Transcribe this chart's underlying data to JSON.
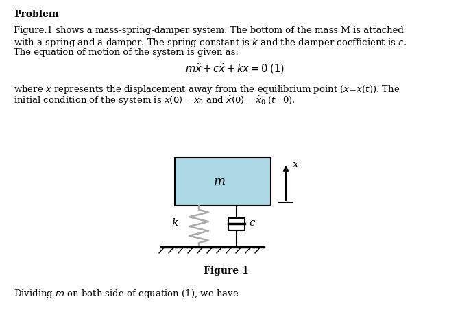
{
  "title": "Problem",
  "para1_lines": [
    "Figure.1 shows a mass-spring-damper system. The bottom of the mass M is attached",
    "with a spring and a damper. The spring constant is $k$ and the damper coefficient is $c$.",
    "The equation of motion of the system is given as:"
  ],
  "equation": "$m\\ddot{x} + c\\dot{x} + kx = 0\\;(1)$",
  "para2_line1": "where $x$ represents the displacement away from the equilibrium point ($x$=$x$($t$)). The",
  "para2_line2": "initial condition of the system is $x(0) = x_0$ and $\\dot{x}(0) = \\dot{x}_0$ ($t$=0).",
  "figure_label": "Figure 1",
  "bottom_text": "Dividing $m$ on both side of equation (1), we have",
  "mass_color": "#add8e6",
  "bg_color": "#ffffff",
  "text_color": "#000000",
  "spring_color": "#aaaaaa",
  "text_fontsize": 9.5,
  "title_fontsize": 10,
  "eq_fontsize": 10.5
}
